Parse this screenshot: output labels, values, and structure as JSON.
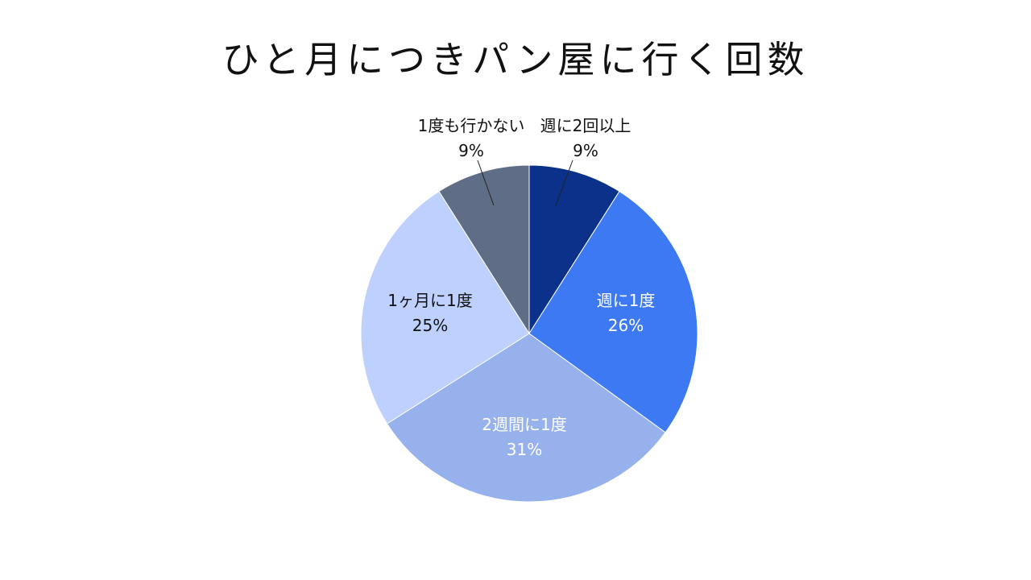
{
  "title": "ひと月につきパン屋に行く回数",
  "chart_data": {
    "type": "pie",
    "title": "ひと月につきパン屋に行く回数",
    "slices": [
      {
        "label": "週に2回以上",
        "value": 9,
        "display": "9%",
        "color": "#0b318a"
      },
      {
        "label": "週に1度",
        "value": 26,
        "display": "26%",
        "color": "#3d79f3"
      },
      {
        "label": "2週間に1度",
        "value": 31,
        "display": "31%",
        "color": "#96b1eb"
      },
      {
        "label": "1ヶ月に1度",
        "value": 25,
        "display": "25%",
        "color": "#bed0fd"
      },
      {
        "label": "1度も行かない",
        "value": 9,
        "display": "9%",
        "color": "#5f6d87"
      }
    ],
    "legend": "none"
  }
}
